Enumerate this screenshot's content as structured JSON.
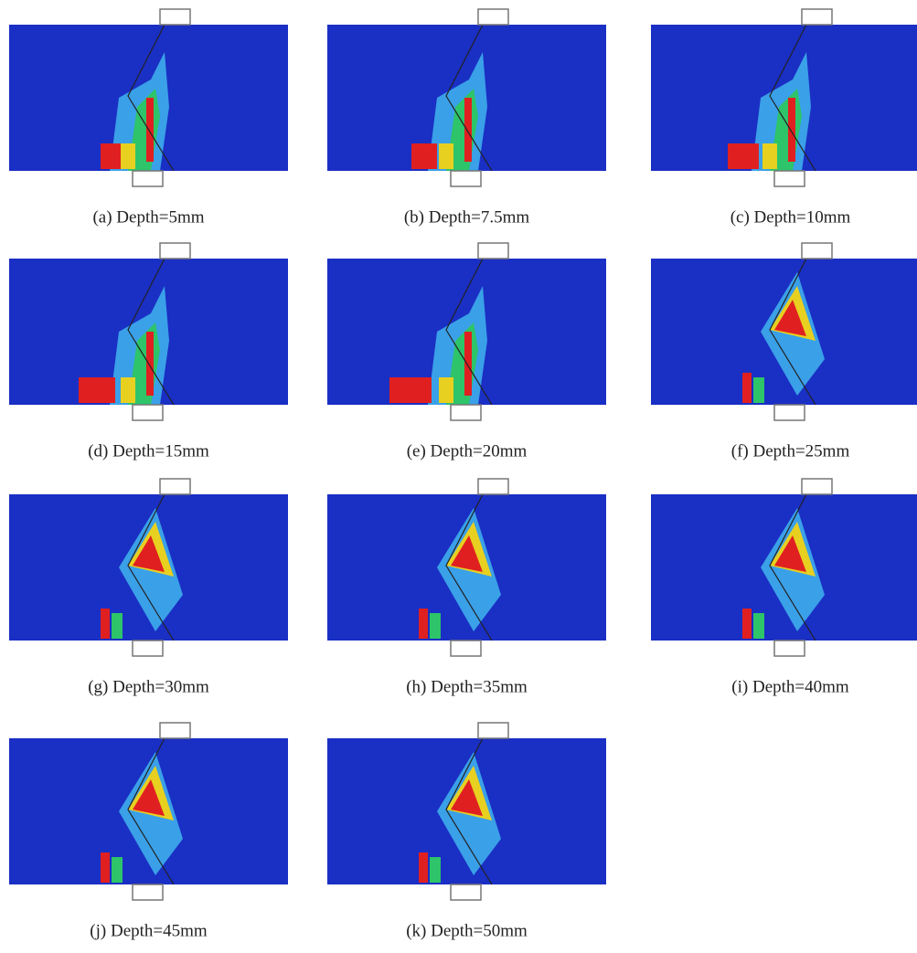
{
  "panels": [
    {
      "caption": "(a) Depth=5mm"
    },
    {
      "caption": "(b) Depth=7.5mm"
    },
    {
      "caption": "(c) Depth=10mm"
    },
    {
      "caption": "(d) Depth=15mm"
    },
    {
      "caption": "(e) Depth=20mm"
    },
    {
      "caption": "(f) Depth=25mm"
    },
    {
      "caption": "(g) Depth=30mm"
    },
    {
      "caption": "(h) Depth=35mm"
    },
    {
      "caption": "(i) Depth=40mm"
    },
    {
      "caption": "(j) Depth=45mm"
    },
    {
      "caption": "(k) Depth=50mm"
    }
  ]
}
